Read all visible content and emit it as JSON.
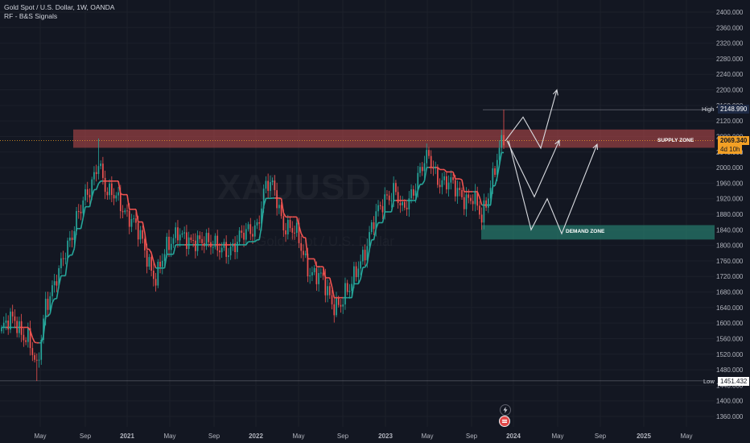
{
  "legend": {
    "title": "Gold Spot / U.S. Dollar, 1W, OANDA",
    "indicator": "RF - B&S Signals"
  },
  "watermark": {
    "symbol": "XAUUSD",
    "description": "Gold Spot / U.S. Dollar"
  },
  "zones": {
    "supply": {
      "label": "SUPPLY ZONE",
      "low": 2051,
      "high": 2098,
      "color": "#b2474a"
    },
    "demand": {
      "label": "DEMAND ZONE",
      "low": 1815,
      "high": 1852,
      "color": "#26776a"
    }
  },
  "price_labels": {
    "high": {
      "side": "High",
      "value": "2148.990"
    },
    "current": {
      "value": "2069.340",
      "countdown": "4d 10h"
    },
    "low": {
      "side": "Low",
      "value": "1451.432"
    }
  },
  "icons": {
    "flash": "lightning-icon",
    "earnings": "flag-icon"
  },
  "colors": {
    "up": "#26a69a",
    "down": "#ef5350",
    "background": "#131722",
    "text": "#b2b5be",
    "high_tag": "#1e2a45",
    "current_tag": "#f2a025"
  },
  "chart_data": {
    "type": "candlestick",
    "title": "Gold Spot / U.S. Dollar, 1W, OANDA",
    "ylim": [
      1340,
      2420
    ],
    "y_ticks": [
      "2400.000",
      "2360.000",
      "2320.000",
      "2280.000",
      "2240.000",
      "2200.000",
      "2160.000",
      "2120.000",
      "2080.000",
      "2040.000",
      "2000.000",
      "1960.000",
      "1920.000",
      "1880.000",
      "1840.000",
      "1800.000",
      "1760.000",
      "1720.000",
      "1680.000",
      "1640.000",
      "1600.000",
      "1560.000",
      "1520.000",
      "1480.000",
      "1440.000",
      "1400.000",
      "1360.000"
    ],
    "x_ticks": [
      "May",
      "Sep",
      "2021",
      "May",
      "Sep",
      "2022",
      "May",
      "Sep",
      "2023",
      "May",
      "Sep",
      "2024",
      "May",
      "Sep",
      "2025",
      "May"
    ],
    "high": 2148.99,
    "low": 1451.432,
    "last": 2069.34,
    "key_points": [
      {
        "date": "2020-03",
        "price": 1451
      },
      {
        "date": "2020-08",
        "price": 2075
      },
      {
        "date": "2021-03",
        "price": 1677
      },
      {
        "date": "2022-03",
        "price": 2070
      },
      {
        "date": "2022-11",
        "price": 1615
      },
      {
        "date": "2023-05",
        "price": 2079
      },
      {
        "date": "2023-10",
        "price": 1810
      },
      {
        "date": "2023-12",
        "price": 2148.99
      }
    ],
    "grid": true
  }
}
